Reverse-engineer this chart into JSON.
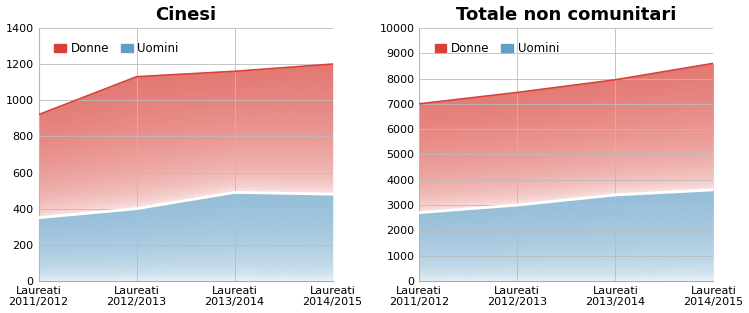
{
  "left_title": "Cinesi",
  "right_title": "Totale non comunitari",
  "x_labels": [
    "Laureati\n2011/2012",
    "Laureati\n2012/2013",
    "Laureati\n2013/2014",
    "Laureati\n2014/2015"
  ],
  "cinesi_uomini": [
    350,
    400,
    490,
    480
  ],
  "cinesi_donne_total": [
    920,
    1130,
    1160,
    1200
  ],
  "totale_uomini": [
    2700,
    3000,
    3400,
    3600
  ],
  "totale_donne_total": [
    7000,
    7450,
    7950,
    8600
  ],
  "left_ylim": [
    0,
    1400
  ],
  "left_yticks": [
    0,
    200,
    400,
    600,
    800,
    1000,
    1200,
    1400
  ],
  "right_ylim": [
    0,
    10000
  ],
  "right_yticks": [
    0,
    1000,
    2000,
    3000,
    4000,
    5000,
    6000,
    7000,
    8000,
    9000,
    10000
  ],
  "color_donne_rgb": [
    0.85,
    0.25,
    0.22
  ],
  "color_uomini_rgb": [
    0.38,
    0.62,
    0.78
  ],
  "legend_donne": "Donne",
  "legend_uomini": "Uomini",
  "title_fontsize": 13,
  "legend_fontsize": 8.5,
  "tick_fontsize": 8,
  "n_gradient_steps": 200
}
